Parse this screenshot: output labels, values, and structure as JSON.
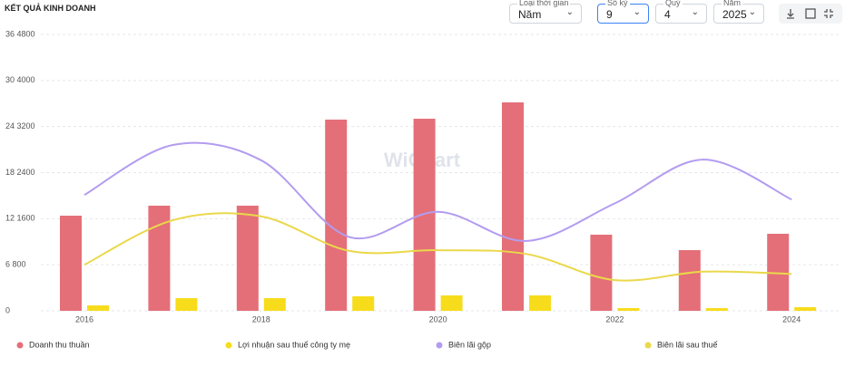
{
  "header": {
    "title": "KẾT QUẢ KINH DOANH",
    "controls": [
      {
        "label": "Loại thời gian",
        "value": "Năm"
      },
      {
        "label": "Số kỳ",
        "value": "9"
      },
      {
        "label": "Quý",
        "value": "4"
      },
      {
        "label": "Năm",
        "value": "2025"
      }
    ]
  },
  "chart_data": {
    "type": "bar",
    "watermark": "WiChart",
    "categories": [
      "2016",
      null,
      "2018",
      null,
      "2020",
      null,
      "2022",
      null,
      "2024"
    ],
    "ylim": [
      0,
      4800
    ],
    "yticks": [
      0,
      {
        "value": 800,
        "label": "6 800"
      },
      {
        "value": 1600,
        "label": "12 1600"
      },
      {
        "value": 2400,
        "label": "18 2400"
      },
      {
        "value": 3200,
        "label": "24 3200"
      },
      {
        "value": 4000,
        "label": "30 4000"
      },
      {
        "value": 4800,
        "label": "36 4800"
      }
    ],
    "y2lim": [
      0,
      36
    ],
    "grid": true,
    "series": [
      {
        "name": "Doanh thu thuần",
        "type": "bar",
        "color": "#e46f78",
        "values": [
          1652,
          1826,
          1826,
          3321,
          3336,
          3620,
          1322,
          1054,
          1338
        ]
      },
      {
        "name": "Lợi nhuận sau thuế công ty mẹ",
        "type": "bar",
        "color": "#f7dc1c",
        "values": [
          94,
          220,
          220,
          252,
          268,
          268,
          47,
          47,
          63
        ]
      },
      {
        "name": "Biên lãi gộp",
        "type": "line",
        "axis": "y2",
        "color": "#b39cf0",
        "values": [
          15.1,
          21.6,
          19.6,
          9.6,
          12.9,
          9.1,
          14.0,
          19.7,
          14.5
        ]
      },
      {
        "name": "Biên lãi sau thuế",
        "type": "line",
        "axis": "y2",
        "color": "#ead84a",
        "values": [
          6.0,
          11.8,
          12.3,
          7.8,
          7.9,
          7.4,
          4.0,
          5.1,
          4.8
        ]
      }
    ]
  }
}
